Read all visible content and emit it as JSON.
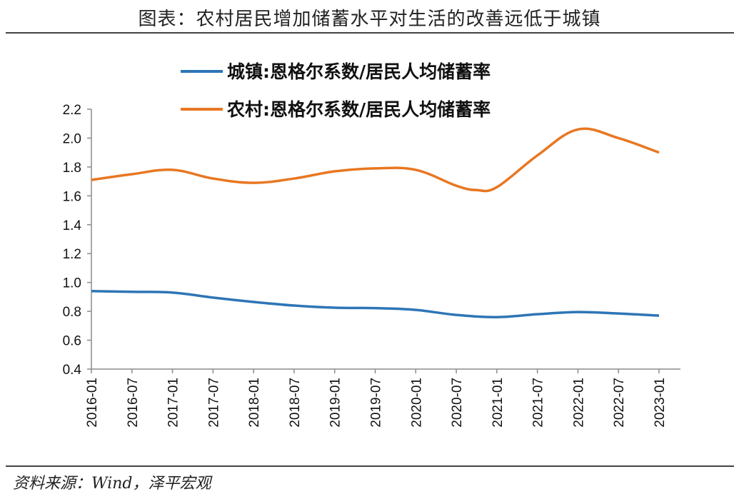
{
  "header": {
    "title": "图表：农村居民增加储蓄水平对生活的改善远低于城镇"
  },
  "footer": {
    "source": "资料来源：Wind，泽平宏观"
  },
  "chart_data": {
    "type": "line",
    "title": "图表：农村居民增加储蓄水平对生活的改善远低于城镇",
    "xlabel": "",
    "ylabel": "",
    "x": [
      "2016-01",
      "2016-07",
      "2017-01",
      "2017-07",
      "2018-01",
      "2018-07",
      "2019-01",
      "2019-07",
      "2020-01",
      "2020-07",
      "2021-01",
      "2021-07",
      "2022-01",
      "2022-07",
      "2023-01"
    ],
    "ylim": [
      0.4,
      2.2
    ],
    "yticks": [
      "0.4",
      "0.6",
      "0.8",
      "1.0",
      "1.2",
      "1.4",
      "1.6",
      "1.8",
      "2.0",
      "2.2"
    ],
    "grid": false,
    "legend_position": "top-right",
    "series": [
      {
        "name": "城镇:恩格尔系数/居民人均储蓄率",
        "color": "#2E75B6",
        "points": [
          [
            "2016-01",
            0.94
          ],
          [
            "2016-07",
            0.935
          ],
          [
            "2017-01",
            0.93
          ],
          [
            "2017-07",
            0.895
          ],
          [
            "2018-01",
            0.865
          ],
          [
            "2018-07",
            0.84
          ],
          [
            "2019-01",
            0.825
          ],
          [
            "2019-07",
            0.822
          ],
          [
            "2020-01",
            0.81
          ],
          [
            "2020-07",
            0.775
          ],
          [
            "2021-01",
            0.76
          ],
          [
            "2021-07",
            0.78
          ],
          [
            "2022-01",
            0.795
          ],
          [
            "2022-07",
            0.785
          ],
          [
            "2023-01",
            0.77
          ]
        ]
      },
      {
        "name": "农村:恩格尔系数/居民人均储蓄率",
        "color": "#E87722",
        "points": [
          [
            "2016-01",
            1.71
          ],
          [
            "2016-07",
            1.75
          ],
          [
            "2017-01",
            1.78
          ],
          [
            "2017-07",
            1.72
          ],
          [
            "2018-01",
            1.69
          ],
          [
            "2018-07",
            1.72
          ],
          [
            "2019-01",
            1.77
          ],
          [
            "2019-07",
            1.79
          ],
          [
            "2020-01",
            1.78
          ],
          [
            "2020-07",
            1.67
          ],
          [
            "2020-10",
            1.64
          ],
          [
            "2021-01",
            1.66
          ],
          [
            "2021-07",
            1.88
          ],
          [
            "2022-01",
            2.06
          ],
          [
            "2022-07",
            2.0
          ],
          [
            "2023-01",
            1.9
          ]
        ]
      }
    ]
  }
}
